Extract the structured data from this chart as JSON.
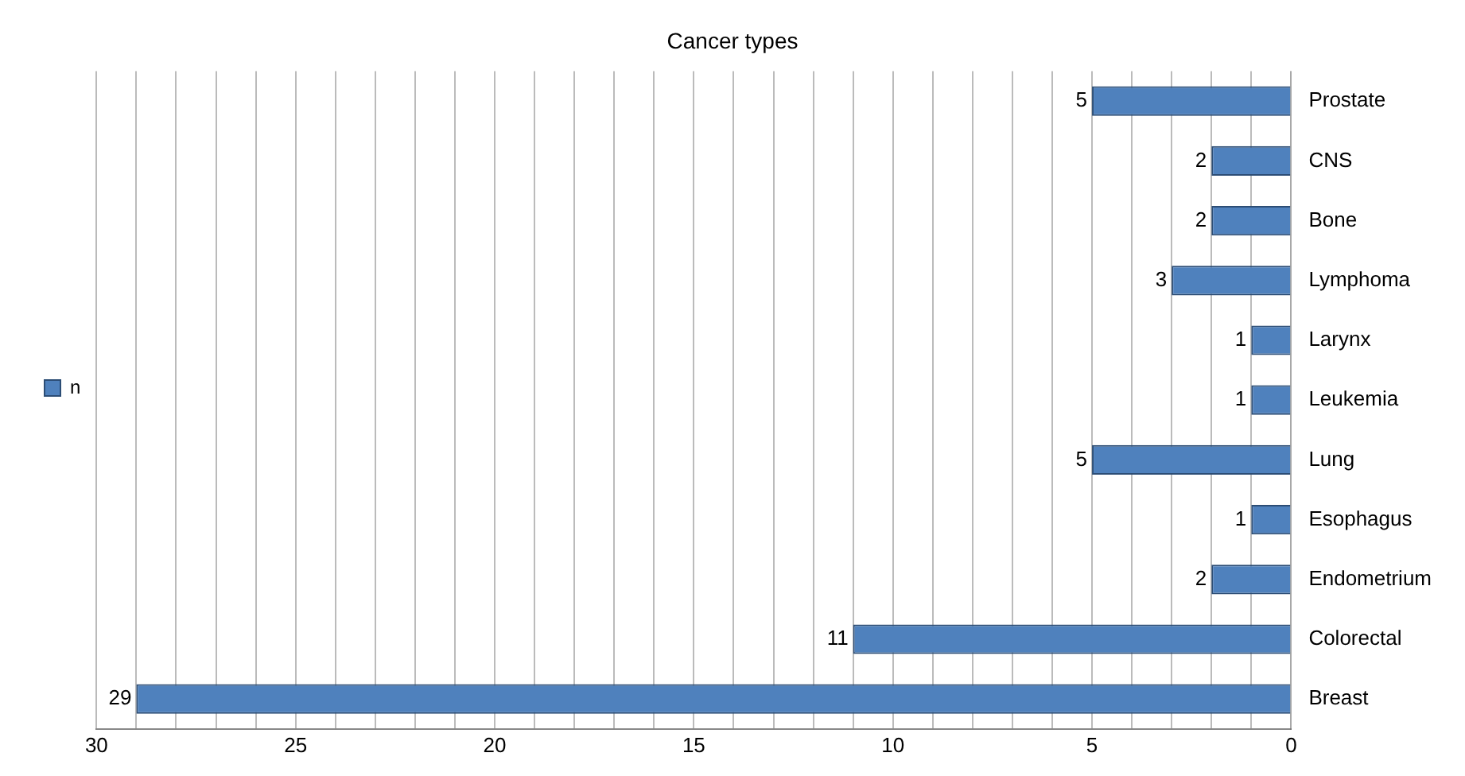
{
  "chart_data": {
    "type": "bar",
    "orientation": "horizontal",
    "title": "Cancer types",
    "categories": [
      "Prostate",
      "CNS",
      "Bone",
      "Lymphoma",
      "Larynx",
      "Leukemia",
      "Lung",
      "Esophagus",
      "Endometrium",
      "Colorectal",
      "Breast"
    ],
    "series": [
      {
        "name": "n",
        "color": "#4f81bd",
        "values": [
          5,
          2,
          2,
          3,
          1,
          1,
          5,
          1,
          2,
          11,
          29
        ]
      }
    ],
    "xlim": [
      30,
      0
    ],
    "xticks": [
      30,
      {
        "value": 29,
        "label": null
      },
      {
        "value": 28,
        "label": null
      },
      {
        "value": 27,
        "label": null
      },
      {
        "value": 26,
        "label": null
      },
      25,
      {
        "value": 24,
        "label": null
      },
      {
        "value": 23,
        "label": null
      },
      {
        "value": 22,
        "label": null
      },
      {
        "value": 21,
        "label": null
      },
      20,
      {
        "value": 19,
        "label": null
      },
      {
        "value": 18,
        "label": null
      },
      {
        "value": 17,
        "label": null
      },
      {
        "value": 16,
        "label": null
      },
      15,
      {
        "value": 14,
        "label": null
      },
      {
        "value": 13,
        "label": null
      },
      {
        "value": 12,
        "label": null
      },
      {
        "value": 11,
        "label": null
      },
      10,
      {
        "value": 9,
        "label": null
      },
      {
        "value": 8,
        "label": null
      },
      {
        "value": 7,
        "label": null
      },
      {
        "value": 6,
        "label": null
      },
      5,
      {
        "value": 4,
        "label": null
      },
      {
        "value": 3,
        "label": null
      },
      {
        "value": 2,
        "label": null
      },
      {
        "value": 1,
        "label": null
      },
      0
    ],
    "grid": "x",
    "legend": "left",
    "data_labels": true
  }
}
